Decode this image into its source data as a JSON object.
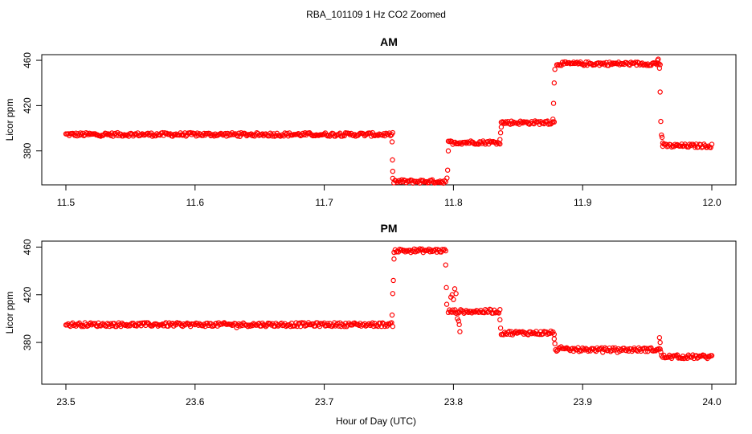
{
  "title": "RBA_101109  1 Hz CO2 Zoomed",
  "xlabel": "Hour of Day (UTC)",
  "chart_data": [
    {
      "type": "scatter",
      "title": "AM",
      "ylabel": "Licor ppm",
      "xlim": [
        11.5,
        12.0
      ],
      "ylim": [
        350,
        465
      ],
      "xticks": [
        "11.5",
        "11.6",
        "11.7",
        "11.8",
        "11.9",
        "12.0"
      ],
      "yticks": [
        "380",
        "420",
        "460"
      ],
      "marker_color": "#ff0000",
      "grid": false,
      "series": [
        {
          "segments": [
            {
              "x": [
                11.5,
                11.753
              ],
              "y": 394.5
            },
            {
              "x": [
                11.753,
                11.794
              ],
              "y": 353
            },
            {
              "x": [
                11.796,
                11.836
              ],
              "y": 387.5
            },
            {
              "x": [
                11.837,
                11.878
              ],
              "y": 405
            },
            {
              "x": [
                11.88,
                11.96
              ],
              "y": 457
            },
            {
              "x": [
                11.962,
                12.0
              ],
              "y": 384.5
            }
          ],
          "transitions": [
            {
              "x": 11.7525,
              "y": 388
            },
            {
              "x": 11.7528,
              "y": 372
            },
            {
              "x": 11.753,
              "y": 362
            },
            {
              "x": 11.795,
              "y": 356
            },
            {
              "x": 11.7955,
              "y": 363
            },
            {
              "x": 11.796,
              "y": 380
            },
            {
              "x": 11.836,
              "y": 390
            },
            {
              "x": 11.8365,
              "y": 396
            },
            {
              "x": 11.837,
              "y": 401
            },
            {
              "x": 11.877,
              "y": 408
            },
            {
              "x": 11.8775,
              "y": 422
            },
            {
              "x": 11.878,
              "y": 440
            },
            {
              "x": 11.8785,
              "y": 452
            },
            {
              "x": 11.958,
              "y": 460
            },
            {
              "x": 11.9585,
              "y": 461
            },
            {
              "x": 11.9595,
              "y": 453
            },
            {
              "x": 11.96,
              "y": 432
            },
            {
              "x": 11.9605,
              "y": 406
            },
            {
              "x": 11.961,
              "y": 394
            },
            {
              "x": 11.9615,
              "y": 392
            },
            {
              "x": 11.962,
              "y": 387
            }
          ]
        }
      ]
    },
    {
      "type": "scatter",
      "title": "PM",
      "ylabel": "Licor ppm",
      "xlim": [
        23.5,
        24.0
      ],
      "ylim": [
        345,
        465
      ],
      "xticks": [
        "23.5",
        "23.6",
        "23.7",
        "23.8",
        "23.9",
        "24.0"
      ],
      "yticks": [
        "380",
        "420",
        "460"
      ],
      "marker_color": "#ff0000",
      "grid": false,
      "series": [
        {
          "segments": [
            {
              "x": [
                23.5,
                23.753
              ],
              "y": 395
            },
            {
              "x": [
                23.754,
                23.794
              ],
              "y": 457
            },
            {
              "x": [
                23.796,
                23.836
              ],
              "y": 406
            },
            {
              "x": [
                23.837,
                23.878
              ],
              "y": 388
            },
            {
              "x": [
                23.879,
                23.96
              ],
              "y": 374
            },
            {
              "x": [
                23.962,
                24.0
              ],
              "y": 368
            }
          ],
          "transitions": [
            {
              "x": 23.7525,
              "y": 403
            },
            {
              "x": 23.753,
              "y": 421
            },
            {
              "x": 23.7535,
              "y": 432
            },
            {
              "x": 23.754,
              "y": 450
            },
            {
              "x": 23.794,
              "y": 445
            },
            {
              "x": 23.7945,
              "y": 426
            },
            {
              "x": 23.7948,
              "y": 412
            },
            {
              "x": 23.798,
              "y": 418
            },
            {
              "x": 23.799,
              "y": 420
            },
            {
              "x": 23.8,
              "y": 416
            },
            {
              "x": 23.801,
              "y": 425
            },
            {
              "x": 23.802,
              "y": 421
            },
            {
              "x": 23.803,
              "y": 400
            },
            {
              "x": 23.804,
              "y": 398
            },
            {
              "x": 23.8045,
              "y": 395
            },
            {
              "x": 23.805,
              "y": 389
            },
            {
              "x": 23.836,
              "y": 399
            },
            {
              "x": 23.8365,
              "y": 392
            },
            {
              "x": 23.878,
              "y": 383
            },
            {
              "x": 23.8785,
              "y": 379
            },
            {
              "x": 23.9595,
              "y": 384
            },
            {
              "x": 23.96,
              "y": 380
            },
            {
              "x": 23.9605,
              "y": 372
            },
            {
              "x": 23.961,
              "y": 369
            }
          ]
        }
      ]
    }
  ]
}
